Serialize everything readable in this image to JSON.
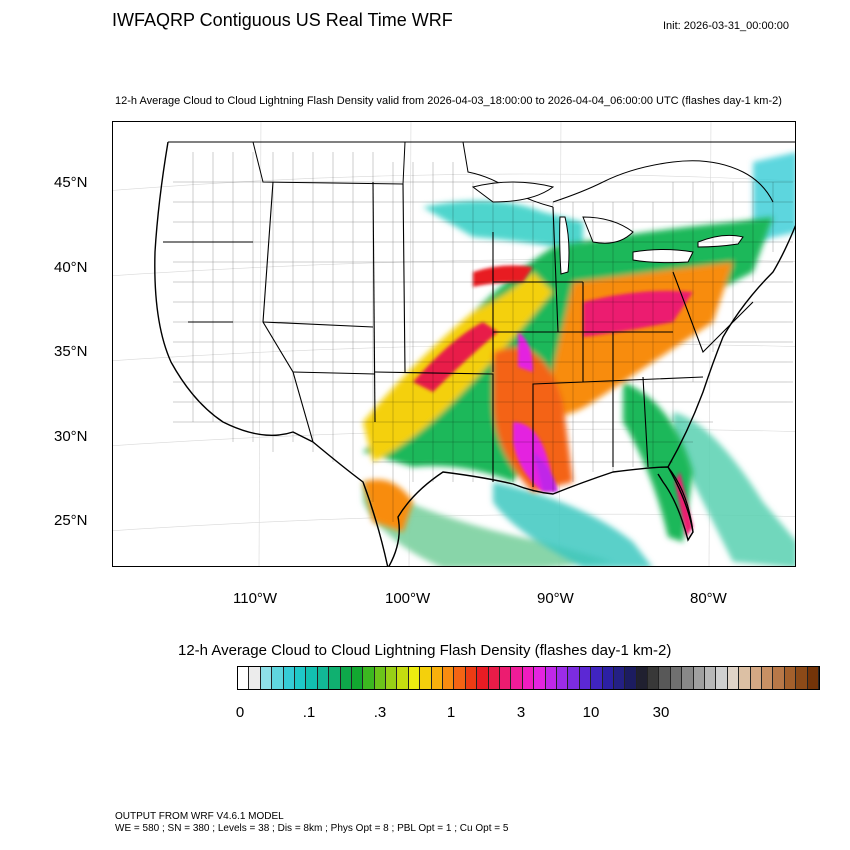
{
  "header": {
    "title": "IWFAQRP Contiguous US Real Time WRF",
    "init": "Init: 2026-03-31_00:00:00",
    "subtitle": "12-h Average Cloud to Cloud Lightning Flash Density valid from 2026-04-03_18:00:00 to 2026-04-04_06:00:00 UTC   (flashes day-1 km-2)"
  },
  "map": {
    "lat_labels": [
      "45°N",
      "40°N",
      "35°N",
      "30°N",
      "25°N"
    ],
    "lon_labels": [
      "110°W",
      "100°W",
      "90°W",
      "80°W"
    ],
    "base_color": "#ffffff",
    "border_color": "#000000"
  },
  "colorbar": {
    "title": "12-h Average Cloud to Cloud Lightning Flash Density  (flashes day-1 km-2)",
    "tick_labels": [
      "0",
      ".1",
      ".3",
      "1",
      "3",
      "10",
      "30"
    ],
    "colors": [
      "#ffffff",
      "#ececec",
      "#8ee0e8",
      "#5fd6de",
      "#36ccd6",
      "#1fc8c8",
      "#12c0b0",
      "#12b896",
      "#10b070",
      "#0ea84a",
      "#12a830",
      "#3cb820",
      "#6cc41a",
      "#98d016",
      "#c4dc10",
      "#ecec10",
      "#f4d00c",
      "#f8b00c",
      "#f88c10",
      "#f46414",
      "#ec3c14",
      "#e81c24",
      "#e81c48",
      "#ec1c70",
      "#f01c98",
      "#f01cc0",
      "#e424e0",
      "#c028e8",
      "#9c2ce8",
      "#7c2ce0",
      "#5c28d4",
      "#4024c0",
      "#2c20a4",
      "#242084",
      "#1c1c60",
      "#202030",
      "#383838",
      "#585858",
      "#707070",
      "#888888",
      "#a0a0a0",
      "#b8b8b8",
      "#d0d0d0",
      "#e0d4c8",
      "#dcc0a4",
      "#d4a884",
      "#c89064",
      "#b87848",
      "#a4602c",
      "#8c4a18",
      "#743408"
    ]
  },
  "footer": {
    "line1": "OUTPUT FROM WRF V4.6.1 MODEL",
    "line2": "WE = 580 ; SN = 380 ; Levels = 38 ; Dis = 8km ; Phys Opt = 8 ; PBL Opt = 1 ; Cu Opt = 5"
  }
}
